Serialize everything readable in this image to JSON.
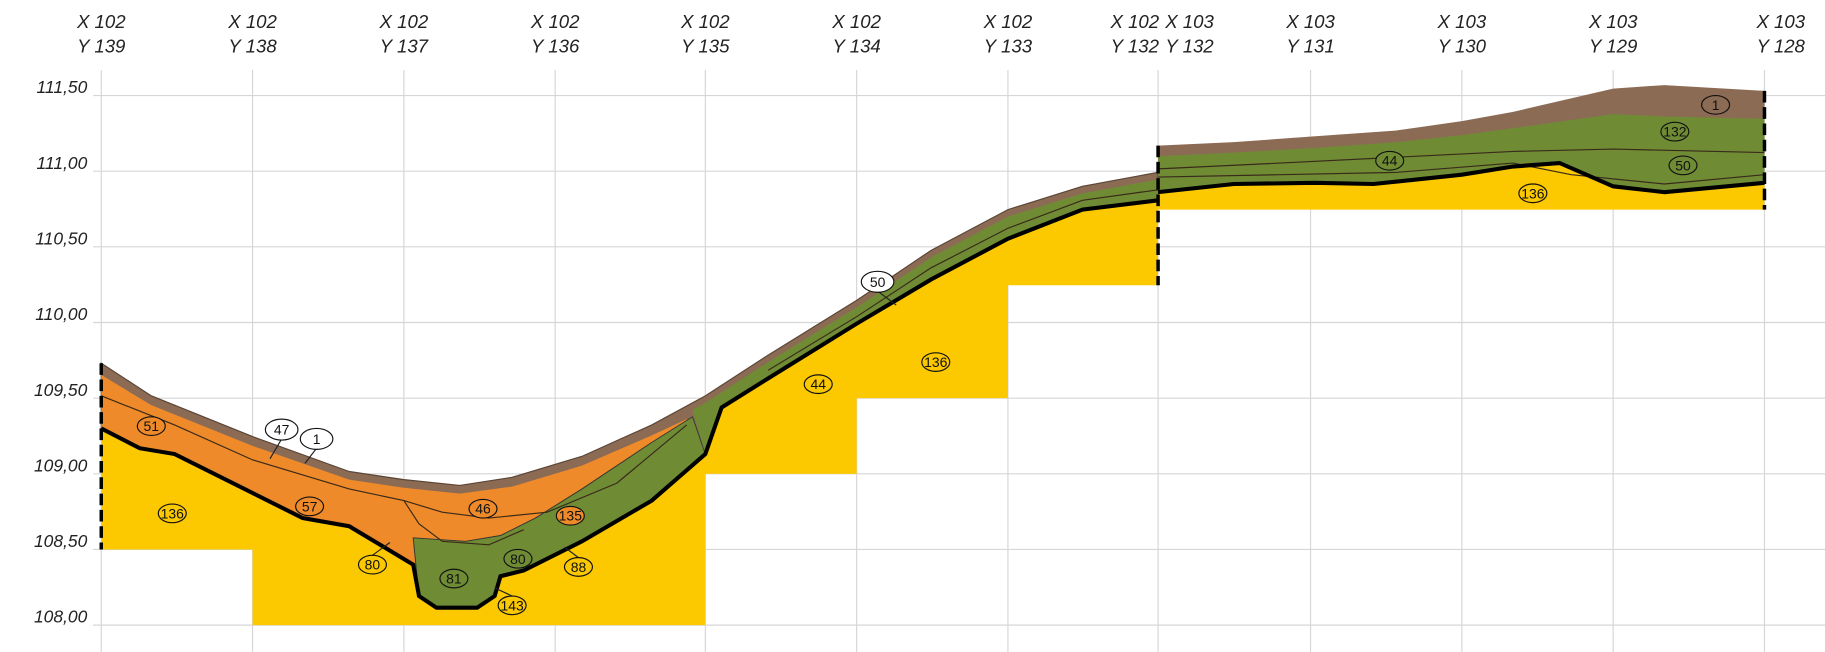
{
  "columns": [
    {
      "x": "X 102",
      "y": "Y 139"
    },
    {
      "x": "X 102",
      "y": "Y 138"
    },
    {
      "x": "X 102",
      "y": "Y 137"
    },
    {
      "x": "X 102",
      "y": "Y 136"
    },
    {
      "x": "X 102",
      "y": "Y 135"
    },
    {
      "x": "X 102",
      "y": "Y 134"
    },
    {
      "x": "X 102",
      "y": "Y 133"
    },
    {
      "x": "X 102",
      "y": "Y 132"
    },
    {
      "x": "X 103",
      "y": "Y 132"
    },
    {
      "x": "X 103",
      "y": "Y 131"
    },
    {
      "x": "X 103",
      "y": "Y 130"
    },
    {
      "x": "X 103",
      "y": "Y 129"
    },
    {
      "x": "X 103",
      "y": "Y 128"
    }
  ],
  "elevations": [
    "111,50",
    "111,00",
    "110,50",
    "110,00",
    "109,50",
    "109,00",
    "108,50",
    "108,00"
  ],
  "layers": [
    "51",
    "47",
    "1",
    "57",
    "136",
    "46",
    "135",
    "80",
    "81",
    "80",
    "88",
    "143",
    "44",
    "136",
    "50",
    "44",
    "136",
    "50",
    "132",
    "1"
  ]
}
